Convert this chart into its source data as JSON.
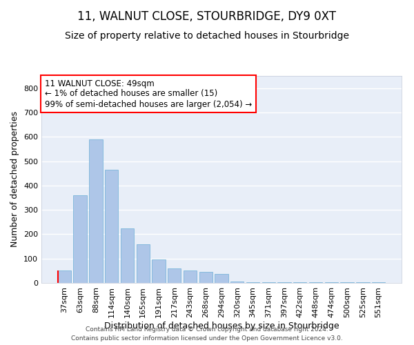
{
  "title": "11, WALNUT CLOSE, STOURBRIDGE, DY9 0XT",
  "subtitle": "Size of property relative to detached houses in Stourbridge",
  "xlabel": "Distribution of detached houses by size in Stourbridge",
  "ylabel": "Number of detached properties",
  "categories": [
    "37sqm",
    "63sqm",
    "88sqm",
    "114sqm",
    "140sqm",
    "165sqm",
    "191sqm",
    "217sqm",
    "243sqm",
    "268sqm",
    "294sqm",
    "320sqm",
    "345sqm",
    "371sqm",
    "397sqm",
    "422sqm",
    "448sqm",
    "474sqm",
    "500sqm",
    "525sqm",
    "551sqm"
  ],
  "values": [
    50,
    360,
    590,
    465,
    225,
    160,
    95,
    60,
    50,
    45,
    38,
    5,
    3,
    2,
    2,
    2,
    2,
    4,
    2,
    4,
    2
  ],
  "bar_color": "#aec6e8",
  "bar_edgecolor": "#6aaed6",
  "background_color": "#e8eef8",
  "grid_color": "#ffffff",
  "annotation_text_line1": "11 WALNUT CLOSE: 49sqm",
  "annotation_text_line2": "← 1% of detached houses are smaller (15)",
  "annotation_text_line3": "99% of semi-detached houses are larger (2,054) →",
  "ylim": [
    0,
    850
  ],
  "yticks": [
    0,
    100,
    200,
    300,
    400,
    500,
    600,
    700,
    800
  ],
  "footer_line1": "Contains HM Land Registry data © Crown copyright and database right 2024.",
  "footer_line2": "Contains public sector information licensed under the Open Government Licence v3.0.",
  "title_fontsize": 12,
  "subtitle_fontsize": 10,
  "tick_fontsize": 8,
  "ylabel_fontsize": 9,
  "xlabel_fontsize": 9,
  "annotation_fontsize": 8.5,
  "footer_fontsize": 6.5
}
